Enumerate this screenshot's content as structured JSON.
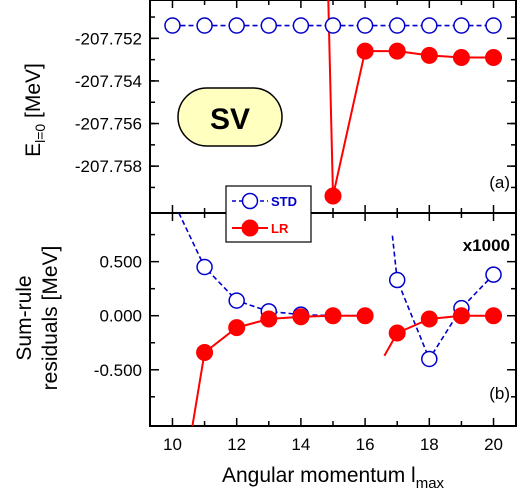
{
  "chart_data": [
    {
      "panel": "(a)",
      "type": "line",
      "ylabel": "E",
      "ylabel_sub": "l=0",
      "ylabel_unit": " [MeV]",
      "ylim": [
        -207.7602,
        -207.7502
      ],
      "yticks": [
        -207.752,
        -207.754,
        -207.756,
        -207.758
      ],
      "ytick_labels": [
        "-207.752",
        "-207.754",
        "-207.756",
        "-207.758"
      ],
      "badge": "SV",
      "series": [
        {
          "name": "STD",
          "color": "#0000cc",
          "marker": "open-circle",
          "dash": true,
          "x": [
            10,
            11,
            12,
            13,
            14,
            15,
            16,
            17,
            18,
            19,
            20
          ],
          "y": [
            -207.7514,
            -207.7514,
            -207.7514,
            -207.7514,
            -207.7514,
            -207.7514,
            -207.7514,
            -207.7514,
            -207.7514,
            -207.7514,
            -207.7514
          ]
        },
        {
          "name": "LR",
          "color": "#ff0000",
          "marker": "filled-circle",
          "dash": false,
          "x": [
            14.85,
            15,
            16,
            17,
            18,
            19,
            20
          ],
          "y": [
            -207.75,
            -207.7594,
            -207.7526,
            -207.7526,
            -207.7528,
            -207.7529,
            -207.7529
          ],
          "markers_from_index": 1
        }
      ]
    },
    {
      "panel": "(b)",
      "type": "line",
      "ylabel_line1": "Sum-rule",
      "ylabel_line2": "residuals [MeV]",
      "scale_note": "x1000",
      "ylim": [
        -1.02,
        0.95
      ],
      "yticks": [
        0.5,
        0.0,
        -0.5
      ],
      "ytick_labels": [
        "0.500",
        "0.000",
        "-0.500"
      ],
      "xlabel": "Angular momentum l",
      "xlabel_sub": "max",
      "xlim": [
        9.3,
        20.7
      ],
      "xticks": [
        10,
        12,
        14,
        16,
        18,
        20
      ],
      "xtick_labels": [
        "10",
        "12",
        "14",
        "16",
        "18",
        "20"
      ],
      "series": [
        {
          "name": "STD",
          "color": "#0000cc",
          "marker": "open-circle",
          "dash": true,
          "segments": [
            {
              "x": [
                10.2,
                11,
                12,
                13,
                14,
                15,
                16
              ],
              "y": [
                0.95,
                0.45,
                0.14,
                0.04,
                0.01,
                0.0,
                0.0
              ],
              "markers_from_index": 1
            },
            {
              "x": [
                16.85,
                17,
                18,
                19,
                20
              ],
              "y": [
                0.74,
                0.33,
                -0.4,
                0.07,
                0.38
              ],
              "markers_from_index": 1
            }
          ]
        },
        {
          "name": "LR",
          "color": "#ff0000",
          "marker": "filled-circle",
          "dash": false,
          "segments": [
            {
              "x": [
                10.62,
                11,
                12,
                13,
                14,
                15,
                16
              ],
              "y": [
                -1.02,
                -0.34,
                -0.11,
                -0.03,
                -0.01,
                0.0,
                0.0
              ],
              "markers_from_index": 1
            },
            {
              "x": [
                16.6,
                17,
                18,
                19,
                20
              ],
              "y": [
                -0.37,
                -0.16,
                -0.03,
                0.0,
                0.0
              ],
              "markers_from_index": 1
            }
          ]
        }
      ]
    }
  ]
}
